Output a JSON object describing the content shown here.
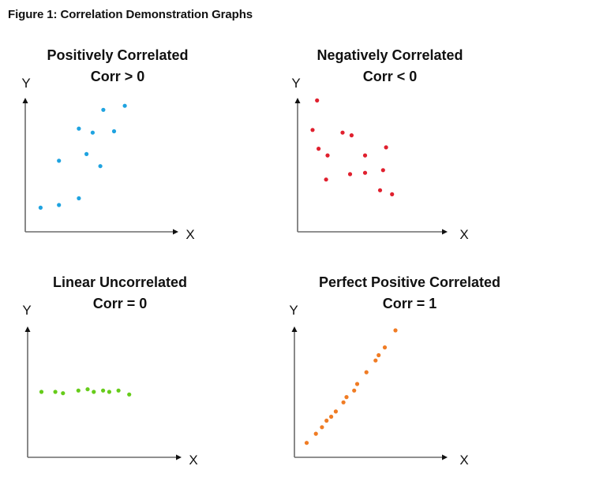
{
  "figure_title": "Figure 1: Correlation Demonstration Graphs",
  "chart_data": [
    {
      "type": "scatter",
      "title": "Positively Correlated",
      "subtitle": "Corr > 0",
      "xlabel": "X",
      "ylabel": "Y",
      "xlim": [
        0,
        10
      ],
      "ylim": [
        0,
        10
      ],
      "grid": false,
      "color": "#1fa3e0",
      "points": [
        [
          1,
          1.8
        ],
        [
          2.2,
          2
        ],
        [
          2.2,
          5.3
        ],
        [
          3.5,
          2.5
        ],
        [
          3.5,
          7.7
        ],
        [
          4,
          5.8
        ],
        [
          4.4,
          7.4
        ],
        [
          4.9,
          4.9
        ],
        [
          5.1,
          9.1
        ],
        [
          5.8,
          7.5
        ],
        [
          6.5,
          9.4
        ]
      ]
    },
    {
      "type": "scatter",
      "title": "Negatively Correlated",
      "subtitle": "Corr < 0",
      "xlabel": "X",
      "ylabel": "Y",
      "xlim": [
        0,
        10
      ],
      "ylim": [
        0,
        10
      ],
      "grid": false,
      "color": "#e0202e",
      "points": [
        [
          1.3,
          9.8
        ],
        [
          1,
          7.6
        ],
        [
          1.4,
          6.2
        ],
        [
          2,
          5.7
        ],
        [
          1.9,
          3.9
        ],
        [
          3,
          7.4
        ],
        [
          3.6,
          7.2
        ],
        [
          3.5,
          4.3
        ],
        [
          4.5,
          4.4
        ],
        [
          4.5,
          5.7
        ],
        [
          5.5,
          3.1
        ],
        [
          5.7,
          4.6
        ],
        [
          5.9,
          6.3
        ],
        [
          6.3,
          2.8
        ]
      ]
    },
    {
      "type": "scatter",
      "title": "Linear Uncorrelated",
      "subtitle": "Corr = 0",
      "xlabel": "X",
      "ylabel": "Y",
      "xlim": [
        0,
        10
      ],
      "ylim": [
        0,
        10
      ],
      "grid": false,
      "color": "#66cc1a",
      "points": [
        [
          0.9,
          5
        ],
        [
          1.8,
          5
        ],
        [
          2.3,
          4.9
        ],
        [
          3.3,
          5.1
        ],
        [
          3.9,
          5.2
        ],
        [
          4.3,
          5
        ],
        [
          4.9,
          5.1
        ],
        [
          5.3,
          5
        ],
        [
          5.9,
          5.1
        ],
        [
          6.6,
          4.8
        ]
      ]
    },
    {
      "type": "scatter",
      "title": "Perfect Positive  Correlated",
      "subtitle": "Corr = 1",
      "xlabel": "X",
      "ylabel": "Y",
      "xlim": [
        0,
        10
      ],
      "ylim": [
        0,
        10
      ],
      "grid": false,
      "color": "#f07c24",
      "points": [
        [
          0.8,
          1.1
        ],
        [
          1.4,
          1.8
        ],
        [
          1.8,
          2.3
        ],
        [
          2.1,
          2.8
        ],
        [
          2.4,
          3.1
        ],
        [
          2.7,
          3.5
        ],
        [
          3.2,
          4.2
        ],
        [
          3.4,
          4.6
        ],
        [
          3.9,
          5.1
        ],
        [
          4.1,
          5.6
        ],
        [
          4.7,
          6.5
        ],
        [
          5.3,
          7.4
        ],
        [
          5.5,
          7.8
        ],
        [
          5.9,
          8.4
        ],
        [
          6.6,
          9.7
        ]
      ]
    }
  ]
}
